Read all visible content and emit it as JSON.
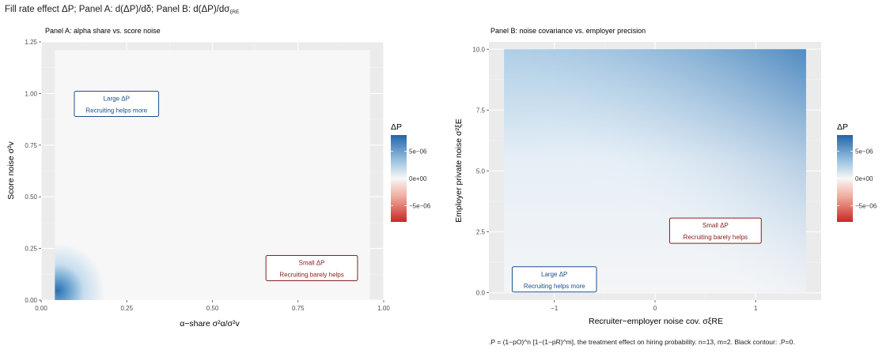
{
  "title": {
    "text": "Fill rate effect ΔP; Panel A: d(ΔP)/dδ; Panel B: d(ΔP)/dσ",
    "subscript": "ξRE"
  },
  "caption": ".P = (1−pO)^n [1−(1−pR)^m], the treatment effect on hiring probability.  n=13, m=2.  Black contour: .P=0.",
  "colors": {
    "positive": "#2166ac",
    "positive_mid": "#9ec4e0",
    "neutral": "#f7f7f7",
    "negative_mid": "#f0a899",
    "negative": "#c62828",
    "box_blue": "#1a4f8a",
    "box_red": "#8b1c1c"
  },
  "chart_data": [
    {
      "type": "heatmap",
      "title": "Panel A: alpha share vs. score noise",
      "xlabel": "α−share  σ²α/σ²v",
      "ylabel": "Score noise  σ²v",
      "xlim": [
        0.0,
        1.0
      ],
      "ylim": [
        0.0,
        1.25
      ],
      "x_ticks": [
        "0.00",
        "0.25",
        "0.50",
        "0.75",
        "1.00"
      ],
      "y_ticks": [
        "0.00",
        "0.25",
        "0.50",
        "0.75",
        "1.00",
        "1.25"
      ],
      "x_tick_values": [
        0,
        0.25,
        0.5,
        0.75,
        1.0
      ],
      "y_tick_values": [
        0,
        0.25,
        0.5,
        0.75,
        1.0,
        1.25
      ],
      "data_extent": {
        "x": [
          0.04,
          0.96
        ],
        "y": [
          0.0,
          1.21
        ]
      },
      "fill": "ΔP is ~0 across the panel; largest positive values concentrated near x≈0.04, y≈0",
      "max_value_corner": "bottom-left",
      "legend": {
        "title": "ΔP",
        "labels": [
          "5e−06",
          "0e+00",
          "−5e−06"
        ],
        "values": [
          5e-06,
          0,
          -5e-06
        ]
      },
      "annotations": [
        {
          "line1": "Large ΔP",
          "line2": "Recruiting helps more",
          "x": 0.22,
          "y": 0.95,
          "color": "blue"
        },
        {
          "line1": "Small ΔP",
          "line2": "Recruiting barely helps",
          "x": 0.79,
          "y": 0.155,
          "color": "red"
        }
      ],
      "grid": true
    },
    {
      "type": "heatmap",
      "title": "Panel B: noise covariance vs. employer precision",
      "xlabel": "Recruiter−employer noise cov.  σξRE",
      "ylabel": "Employer private noise  σ²ξE",
      "xlim": [
        -1.65,
        1.65
      ],
      "ylim": [
        -0.3,
        10.3
      ],
      "x_ticks": [
        "−1",
        "0",
        "1"
      ],
      "y_ticks": [
        "0.0",
        "2.5",
        "5.0",
        "7.5",
        "10.0"
      ],
      "x_tick_values": [
        -1,
        0,
        1
      ],
      "y_tick_values": [
        0,
        2.5,
        5.0,
        7.5,
        10.0
      ],
      "data_extent": {
        "x": [
          -1.5,
          1.5
        ],
        "y": [
          0.0,
          10.0
        ]
      },
      "fill": "ΔP increases with employer private noise (top) and with covariance (right); near 0 at bottom",
      "max_value_corner": "top-right",
      "legend": {
        "title": "ΔP",
        "labels": [
          "5e−06",
          "0e+00",
          "−5e−06"
        ],
        "values": [
          5e-06,
          0,
          -5e-06
        ]
      },
      "annotations": [
        {
          "line1": "Small ΔP",
          "line2": "Recruiting barely helps",
          "x": 0.6,
          "y": 2.55,
          "color": "red"
        },
        {
          "line1": "Large ΔP",
          "line2": "Recruiting helps more",
          "x": -1.0,
          "y": 0.55,
          "color": "blue"
        }
      ],
      "grid": true
    }
  ]
}
